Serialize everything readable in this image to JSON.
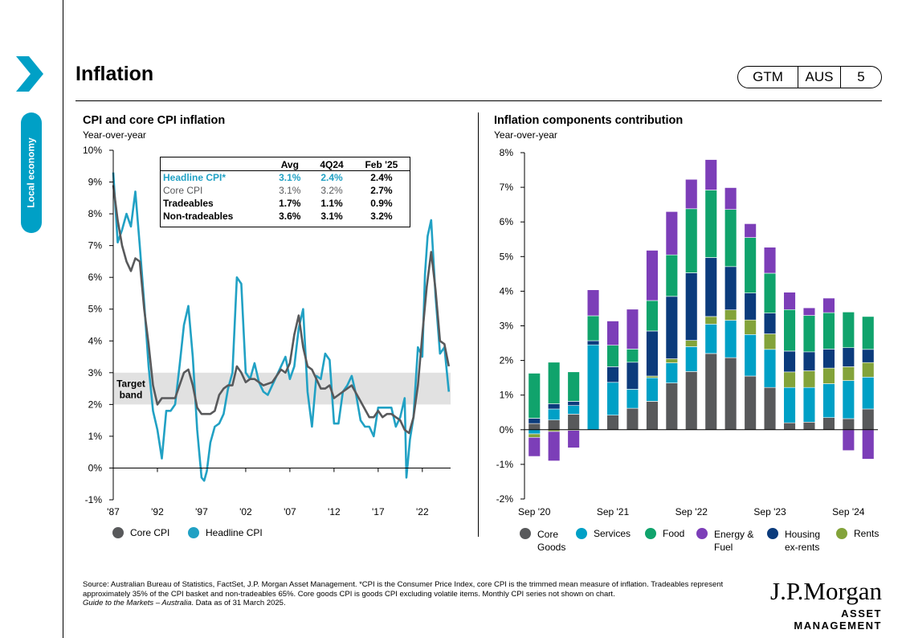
{
  "side_tab": {
    "label": "Local economy"
  },
  "header": {
    "title": "Inflation",
    "badge": {
      "gtm": "GTM",
      "region": "AUS",
      "page": "5"
    }
  },
  "colors": {
    "accent": "#00a0c6",
    "core_cpi": "#58595b",
    "headline_cpi": "#21a1c4",
    "core_goods": "#58595b",
    "services": "#00a0c6",
    "food": "#10a36c",
    "energy_fuel": "#7c3eb8",
    "housing_ex_rents": "#0b3b7c",
    "rents": "#83a33a",
    "target_band": "#e1e1e1"
  },
  "left_chart": {
    "title": "CPI and core CPI inflation",
    "subtitle": "Year-over-year",
    "target_band_label_1": "Target",
    "target_band_label_2": "band",
    "legend": [
      {
        "label": "Core CPI",
        "color": "#58595b"
      },
      {
        "label": "Headline CPI",
        "color": "#21a1c4"
      }
    ],
    "table": {
      "headers": [
        "",
        "Avg",
        "4Q24",
        "Feb '25"
      ],
      "rows": [
        {
          "label": "Headline CPI*",
          "avg": "3.1%",
          "q": "2.4%",
          "feb": "2.4%"
        },
        {
          "label": "Core CPI",
          "avg": "3.1%",
          "q": "3.2%",
          "feb": "2.7%"
        },
        {
          "label": "Tradeables",
          "avg": "1.7%",
          "q": "1.1%",
          "feb": "0.9%"
        },
        {
          "label": "Non-tradeables",
          "avg": "3.6%",
          "q": "3.1%",
          "feb": "3.2%"
        }
      ]
    }
  },
  "right_chart": {
    "title": "Inflation components contribution",
    "subtitle": "Year-over-year",
    "legend": [
      {
        "label": "Core\nGoods",
        "color": "#58595b"
      },
      {
        "label": "Services",
        "color": "#00a0c6"
      },
      {
        "label": "Food",
        "color": "#10a36c"
      },
      {
        "label": "Energy &\nFuel",
        "color": "#7c3eb8"
      },
      {
        "label": "Housing\nex-rents",
        "color": "#0b3b7c"
      },
      {
        "label": "Rents",
        "color": "#83a33a"
      }
    ]
  },
  "chart_data": [
    {
      "type": "line",
      "title": "CPI and core CPI inflation",
      "ylabel": "Year-over-year",
      "ylim": [
        -1,
        10
      ],
      "yticks": [
        "10%",
        "9%",
        "8%",
        "7%",
        "6%",
        "5%",
        "4%",
        "3%",
        "2%",
        "1%",
        "0%",
        "-1%"
      ],
      "xticks": [
        "'87",
        "'92",
        "'97",
        "'02",
        "'07",
        "'12",
        "'17",
        "'22"
      ],
      "xlim": [
        1987,
        2025.2
      ],
      "target_band": [
        2,
        3
      ],
      "series": [
        {
          "name": "Core CPI",
          "x": [
            1987,
            1987.5,
            1988,
            1988.5,
            1989,
            1989.5,
            1990,
            1990.5,
            1991,
            1991.5,
            1992,
            1992.5,
            1993,
            1994,
            1995,
            1995.5,
            1996,
            1996.5,
            1997,
            1997.5,
            1998,
            1998.5,
            1999,
            1999.5,
            2000,
            2000.5,
            2001,
            2001.5,
            2002,
            2002.5,
            2003,
            2004,
            2005,
            2005.5,
            2006,
            2006.5,
            2007,
            2007.5,
            2008,
            2008.5,
            2009,
            2009.5,
            2010,
            2010.5,
            2011,
            2011.5,
            2012,
            2012.5,
            2013,
            2014,
            2015,
            2016,
            2016.5,
            2017,
            2017.5,
            2018,
            2018.5,
            2019,
            2019.5,
            2020,
            2020.5,
            2021,
            2021.5,
            2022,
            2022.5,
            2023,
            2023.5,
            2024,
            2024.5,
            2025
          ],
          "y": [
            8.9,
            7.8,
            7.0,
            6.5,
            6.2,
            6.6,
            6.5,
            5.0,
            3.9,
            2.6,
            2.0,
            2.2,
            2.2,
            2.2,
            3.0,
            3.1,
            2.6,
            1.9,
            1.7,
            1.7,
            1.7,
            1.8,
            2.3,
            2.5,
            2.6,
            2.6,
            3.2,
            3.0,
            2.7,
            2.8,
            2.8,
            2.6,
            2.7,
            2.9,
            3.1,
            3.0,
            3.3,
            4.2,
            4.8,
            3.8,
            3.2,
            3.1,
            2.8,
            2.5,
            2.5,
            2.6,
            2.2,
            2.3,
            2.4,
            2.6,
            2.1,
            1.6,
            1.6,
            1.8,
            1.6,
            1.7,
            1.7,
            1.6,
            1.5,
            1.2,
            1.1,
            1.6,
            2.6,
            4.2,
            5.7,
            6.8,
            5.6,
            4.0,
            3.9,
            3.2
          ]
        },
        {
          "name": "Headline CPI",
          "x": [
            1987,
            1987.5,
            1988,
            1988.5,
            1989,
            1989.5,
            1990,
            1990.5,
            1991,
            1991.5,
            1992,
            1992.5,
            1993,
            1993.5,
            1994,
            1994.5,
            1995,
            1995.5,
            1996,
            1996.5,
            1997,
            1997.3,
            1997.6,
            1998,
            1998.5,
            1999,
            1999.5,
            2000,
            2000.5,
            2001,
            2001.5,
            2002,
            2002.5,
            2003,
            2003.5,
            2004,
            2004.5,
            2005,
            2005.5,
            2006,
            2006.5,
            2007,
            2007.5,
            2008,
            2008.5,
            2009,
            2009.5,
            2010,
            2010.5,
            2011,
            2011.5,
            2012,
            2012.5,
            2013,
            2013.5,
            2014,
            2014.5,
            2015,
            2015.5,
            2016,
            2016.5,
            2017,
            2017.5,
            2018,
            2018.5,
            2019,
            2019.5,
            2020,
            2020.2,
            2020.6,
            2021,
            2021.5,
            2022,
            2022.3,
            2022.6,
            2023,
            2023.5,
            2024,
            2024.5,
            2025
          ],
          "y": [
            9.3,
            7.1,
            7.5,
            8.0,
            7.6,
            8.7,
            7.0,
            5.2,
            3.2,
            1.8,
            1.2,
            0.3,
            1.8,
            1.8,
            2.0,
            3.2,
            4.5,
            5.1,
            3.5,
            1.2,
            -0.3,
            -0.4,
            -0.1,
            0.8,
            1.3,
            1.4,
            1.7,
            2.5,
            3.0,
            6.0,
            5.8,
            3.0,
            2.8,
            3.3,
            2.7,
            2.4,
            2.3,
            2.6,
            2.9,
            3.2,
            3.5,
            2.8,
            3.2,
            4.4,
            5.0,
            2.4,
            1.3,
            2.9,
            2.8,
            3.6,
            3.4,
            1.4,
            1.4,
            2.4,
            2.6,
            2.9,
            2.3,
            1.5,
            1.3,
            1.3,
            1.0,
            1.9,
            1.9,
            1.9,
            1.9,
            1.3,
            1.6,
            2.2,
            -0.3,
            0.9,
            1.6,
            3.8,
            3.5,
            6.1,
            7.3,
            7.8,
            5.4,
            3.6,
            3.8,
            2.4
          ]
        }
      ]
    },
    {
      "type": "bar",
      "stacked": true,
      "title": "Inflation components contribution",
      "ylabel": "Year-over-year",
      "ylim": [
        -2,
        8
      ],
      "yticks": [
        "8%",
        "7%",
        "6%",
        "5%",
        "4%",
        "3%",
        "2%",
        "1%",
        "0%",
        "-1%",
        "-2%"
      ],
      "categories": [
        "Sep '20",
        "Dec '20",
        "Mar '21",
        "Jun '21",
        "Sep '21",
        "Dec '21",
        "Mar '22",
        "Jun '22",
        "Sep '22",
        "Dec '22",
        "Mar '23",
        "Jun '23",
        "Sep '23",
        "Dec '23",
        "Mar '24",
        "Jun '24",
        "Sep '24",
        "Dec '24"
      ],
      "xticks": [
        "Sep '20",
        "Sep '21",
        "Sep '22",
        "Sep '23",
        "Sep '24"
      ],
      "series": [
        {
          "name": "Core Goods",
          "values": [
            0.18,
            0.28,
            0.45,
            0.0,
            0.42,
            0.62,
            0.82,
            1.35,
            1.68,
            2.2,
            2.08,
            1.55,
            1.22,
            0.2,
            0.22,
            0.35,
            0.32,
            0.6
          ]
        },
        {
          "name": "Services",
          "values": [
            -0.12,
            0.32,
            0.25,
            2.45,
            0.95,
            0.55,
            0.68,
            0.58,
            0.72,
            0.85,
            1.08,
            1.2,
            1.1,
            1.02,
            1.0,
            0.98,
            1.1,
            0.92
          ]
        },
        {
          "name": "Rents",
          "values": [
            -0.1,
            -0.05,
            -0.02,
            0.0,
            0.0,
            0.0,
            0.05,
            0.12,
            0.18,
            0.22,
            0.3,
            0.42,
            0.45,
            0.45,
            0.48,
            0.45,
            0.4,
            0.42
          ]
        },
        {
          "name": "Housing ex-rents",
          "values": [
            0.15,
            0.15,
            0.12,
            0.12,
            0.45,
            0.78,
            1.3,
            1.8,
            1.95,
            1.7,
            1.25,
            0.78,
            0.6,
            0.6,
            0.55,
            0.55,
            0.55,
            0.38
          ]
        },
        {
          "name": "Food",
          "values": [
            1.3,
            1.2,
            0.85,
            0.72,
            0.62,
            0.38,
            0.88,
            1.2,
            1.85,
            1.95,
            1.65,
            1.6,
            1.15,
            1.2,
            1.05,
            1.05,
            1.03,
            0.95
          ]
        },
        {
          "name": "Energy & Fuel",
          "values": [
            -0.55,
            -0.85,
            -0.5,
            0.75,
            0.7,
            1.15,
            1.45,
            1.25,
            0.85,
            0.88,
            0.63,
            0.4,
            0.75,
            0.5,
            0.22,
            0.42,
            -0.6,
            -0.85
          ]
        }
      ]
    }
  ],
  "footnote": {
    "source": "Source: Australian Bureau of Statistics, FactSet, J.P. Morgan Asset Management. *CPI is the Consumer Price Index, core CPI is the trimmed mean measure of inflation. Tradeables represent approximately 35% of the CPI basket and non-tradeables 65%. Core goods CPI is goods CPI excluding volatile items. Monthly CPI series not shown on chart.",
    "guide": "Guide to the Markets – Australia",
    "date": ". Data as of 31 March 2025."
  },
  "logo": {
    "main": "J.P.Morgan",
    "sub": "ASSET MANAGEMENT"
  }
}
